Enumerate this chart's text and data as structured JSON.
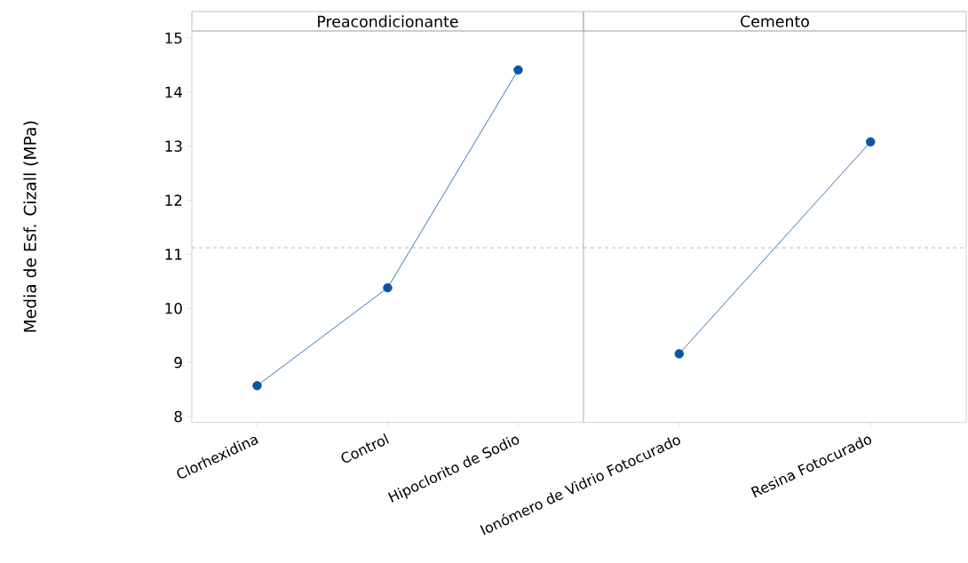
{
  "chart_data": [
    {
      "type": "line",
      "title": "Preacondicionante",
      "ylabel": "Media de Esf. Cizall (MPa)",
      "categories": [
        "Clorhexidina",
        "Control",
        "Hipoclorito de Sodio"
      ],
      "series": [
        {
          "color": "#0b55a5",
          "values": [
            8.57,
            10.38,
            14.41
          ]
        }
      ],
      "ylim": [
        7.89,
        15.13
      ],
      "yticks": [
        8,
        9,
        10,
        11,
        12,
        13,
        14,
        15
      ],
      "marker": "circle",
      "line_style": "solid",
      "ref_lines": [
        {
          "axis": "y",
          "value": 11.12,
          "color": "#8c8c8c",
          "line_style": "dashed"
        }
      ]
    },
    {
      "type": "line",
      "title": "Cemento",
      "categories": [
        "Ionómero de Vidrio Fotocurado",
        "Resina Fotocurado"
      ],
      "series": [
        {
          "color": "#0b55a5",
          "values": [
            9.16,
            13.08
          ]
        }
      ],
      "ylim": [
        7.89,
        15.13
      ],
      "yticks": [
        8,
        9,
        10,
        11,
        12,
        13,
        14,
        15
      ],
      "marker": "circle",
      "line_style": "solid",
      "tick_labels": "x",
      "ref_lines": [
        {
          "axis": "y",
          "value": 11.12,
          "color": "#8c8c8c",
          "line_style": "dashed"
        }
      ]
    }
  ]
}
